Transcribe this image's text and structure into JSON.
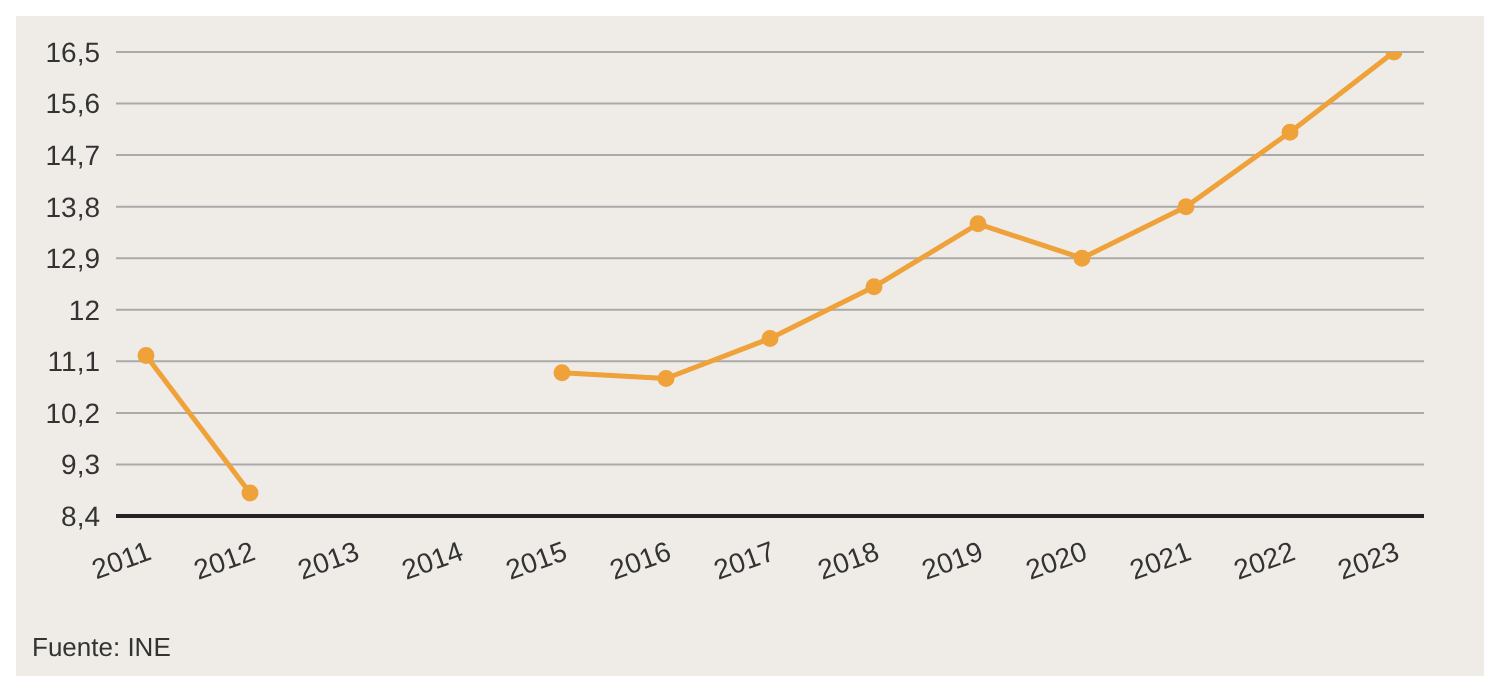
{
  "chart_data": {
    "type": "line",
    "categories": [
      "2011",
      "2012",
      "2013",
      "2014",
      "2015",
      "2016",
      "2017",
      "2018",
      "2019",
      "2020",
      "2021",
      "2022",
      "2023"
    ],
    "series": [
      {
        "color": "#efa13a",
        "values": [
          11.2,
          8.8,
          null,
          null,
          10.9,
          10.8,
          11.5,
          12.4,
          13.5,
          12.9,
          13.8,
          15.1,
          16.5
        ]
      }
    ],
    "ylim": [
      8.4,
      16.5
    ],
    "yticks": [
      {
        "value": 8.4,
        "label": "8,4"
      },
      {
        "value": 9.3,
        "label": "9,3"
      },
      {
        "value": 10.2,
        "label": "10,2"
      },
      {
        "value": 11.1,
        "label": "11,1"
      },
      12,
      {
        "value": 12.9,
        "label": "12,9"
      },
      {
        "value": 13.8,
        "label": "13,8"
      },
      {
        "value": 14.7,
        "label": "14,7"
      },
      {
        "value": 15.6,
        "label": "15,6"
      },
      {
        "value": 16.5,
        "label": "16,5"
      }
    ],
    "grid": "y",
    "marker": "circle",
    "line_style": "solid",
    "legend": false,
    "annotations": [
      "Fuente: INE"
    ]
  }
}
